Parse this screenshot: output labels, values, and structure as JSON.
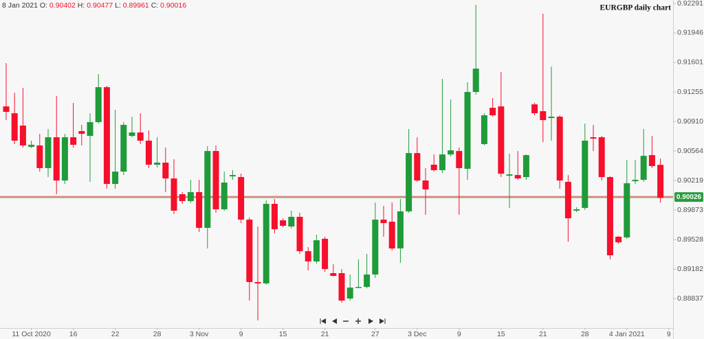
{
  "chart_data": {
    "type": "candlestick",
    "title": "EURGBP daily chart",
    "legend_date": "8 Jan 2021",
    "ohlc_labels": [
      "O:",
      "H:",
      "L:",
      "C:"
    ],
    "categories": [
      null,
      null,
      null,
      "11 Oct 2020",
      null,
      null,
      null,
      null,
      "16",
      null,
      null,
      null,
      null,
      "22",
      null,
      null,
      null,
      null,
      "28",
      null,
      null,
      null,
      null,
      "3 Nov",
      null,
      null,
      null,
      null,
      "9",
      null,
      null,
      null,
      null,
      "15",
      null,
      null,
      null,
      null,
      "21",
      null,
      null,
      null,
      null,
      null,
      "27",
      null,
      null,
      null,
      null,
      "3 Dec",
      null,
      null,
      null,
      null,
      "9",
      null,
      null,
      null,
      null,
      "15",
      null,
      null,
      null,
      null,
      "21",
      null,
      null,
      null,
      null,
      "28",
      null,
      null,
      null,
      null,
      "4 Jan 2021",
      null,
      null,
      null,
      null,
      "9"
    ],
    "open": [
      0.91086,
      0.91006,
      0.90862,
      0.90613,
      0.90629,
      0.90364,
      0.90725,
      0.90219,
      0.90725,
      0.90797,
      0.90741,
      0.90902,
      0.91311,
      0.90179,
      0.90323,
      0.90741,
      0.90781,
      0.90685,
      0.90404,
      0.90428,
      0.90243,
      0.90059,
      0.89978,
      0.90083,
      0.89665,
      0.90564,
      0.89882,
      0.90267,
      0.90259,
      0.89761,
      0.89031,
      0.89015,
      0.89946,
      0.89753,
      0.89681,
      0.89794,
      0.89392,
      0.89272,
      0.89537,
      0.89135,
      0.89135,
      0.88838,
      0.88966,
      0.88974,
      0.89119,
      0.89761,
      0.89737,
      0.89424,
      0.89858,
      0.9054,
      0.90219,
      0.90404,
      0.9034,
      0.90524,
      0.90564,
      0.90356,
      0.91255,
      0.90645,
      0.9107,
      0.91086,
      0.90275,
      0.90283,
      0.90259,
      0.9111,
      0.9103,
      0.9095,
      0.90966,
      0.90203,
      0.89866,
      0.89898,
      0.90725,
      0.90725,
      0.90259,
      0.89561,
      0.89553,
      0.90211,
      0.90227,
      0.90516,
      0.90402,
      null
    ],
    "high": [
      0.91592,
      0.91247,
      0.91303,
      0.90685,
      0.90765,
      0.90821,
      0.91207,
      0.90765,
      0.91127,
      0.9087,
      0.91006,
      0.91464,
      0.91327,
      0.91046,
      0.90902,
      0.90966,
      0.91006,
      0.90805,
      0.90725,
      0.90605,
      0.90468,
      0.90083,
      0.90227,
      0.90227,
      0.90621,
      0.90629,
      0.90323,
      0.9034,
      0.90299,
      0.89785,
      0.89681,
      0.89986,
      0.90002,
      0.89777,
      0.89866,
      0.89842,
      0.8944,
      0.89585,
      0.89561,
      0.89239,
      0.89183,
      0.89119,
      0.89296,
      0.8936,
      0.89962,
      0.89922,
      0.89962,
      0.90002,
      0.90821,
      0.90725,
      0.90364,
      0.90524,
      0.91408,
      0.91167,
      0.90605,
      0.91367,
      0.92275,
      0.91006,
      0.91183,
      0.91488,
      0.90532,
      0.90564,
      0.90524,
      0.91127,
      0.9217,
      0.91552,
      0.90982,
      0.90283,
      0.89906,
      0.90886,
      0.9087,
      0.90741,
      0.90267,
      0.89569,
      0.9046,
      0.9046,
      0.90821,
      0.90741,
      0.90477,
      null
    ],
    "low": [
      0.90926,
      0.90645,
      0.90605,
      0.90597,
      0.90323,
      0.90259,
      0.90059,
      0.90179,
      0.90605,
      0.90629,
      0.90203,
      0.90886,
      0.90123,
      0.90123,
      0.90283,
      0.90725,
      0.90645,
      0.90364,
      0.90372,
      0.90083,
      0.89826,
      0.89946,
      0.89954,
      0.89617,
      0.89424,
      0.89842,
      0.89866,
      0.90227,
      0.89721,
      0.88814,
      0.88581,
      0.88999,
      0.89601,
      0.89673,
      0.89657,
      0.8936,
      0.89167,
      0.89247,
      0.89151,
      0.89095,
      0.8879,
      0.88814,
      0.88958,
      0.88958,
      0.89079,
      0.89561,
      0.894,
      0.89256,
      0.89842,
      0.90203,
      0.89818,
      0.90323,
      0.90307,
      0.905,
      0.89818,
      0.90227,
      0.91223,
      0.90629,
      0.90966,
      0.90259,
      0.89898,
      0.90227,
      0.90227,
      0.90982,
      0.90669,
      0.90685,
      0.90123,
      0.89504,
      0.8985,
      0.89874,
      0.90564,
      0.90219,
      0.89296,
      0.8948,
      0.89537,
      0.90179,
      0.90203,
      0.90364,
      0.89961,
      null
    ],
    "close": [
      0.91022,
      0.90685,
      0.90629,
      0.90637,
      0.90364,
      0.90725,
      0.90219,
      0.90725,
      0.90637,
      0.90765,
      0.90902,
      0.91311,
      0.90179,
      0.90323,
      0.9087,
      0.90781,
      0.90685,
      0.90404,
      0.90428,
      0.90243,
      0.89866,
      0.89978,
      0.90083,
      0.89665,
      0.90564,
      0.89882,
      0.90195,
      0.90283,
      0.89761,
      0.89031,
      0.89015,
      0.89946,
      0.89649,
      0.89689,
      0.89794,
      0.89392,
      0.89272,
      0.8952,
      0.89183,
      0.89103,
      0.88814,
      0.88966,
      0.88974,
      0.89119,
      0.89761,
      0.89721,
      0.89424,
      0.89858,
      0.9054,
      0.90219,
      0.90115,
      0.9034,
      0.90524,
      0.90572,
      0.90364,
      0.91255,
      0.91528,
      0.90982,
      0.90982,
      0.90299,
      0.90291,
      0.90243,
      0.90516,
      0.91006,
      0.90926,
      0.90966,
      0.90219,
      0.89777,
      0.89882,
      0.90685,
      0.90709,
      0.90259,
      0.89344,
      0.89496,
      0.90187,
      0.90227,
      0.90508,
      0.90388,
      0.90016,
      null
    ],
    "up_color": "#1f9b3a",
    "down_color": "#f5102c",
    "last_price": 0.90026,
    "last_price_color": "#2a9a3e",
    "ylim": [
      0.88493,
      0.92331
    ],
    "yticks": [
      0.92291,
      0.91946,
      0.91601,
      0.91255,
      {
        "value": 0.9091,
        "label": "0.90910"
      },
      0.90564,
      0.90219,
      0.89873,
      0.89528,
      0.89182,
      0.88837
    ]
  }
}
